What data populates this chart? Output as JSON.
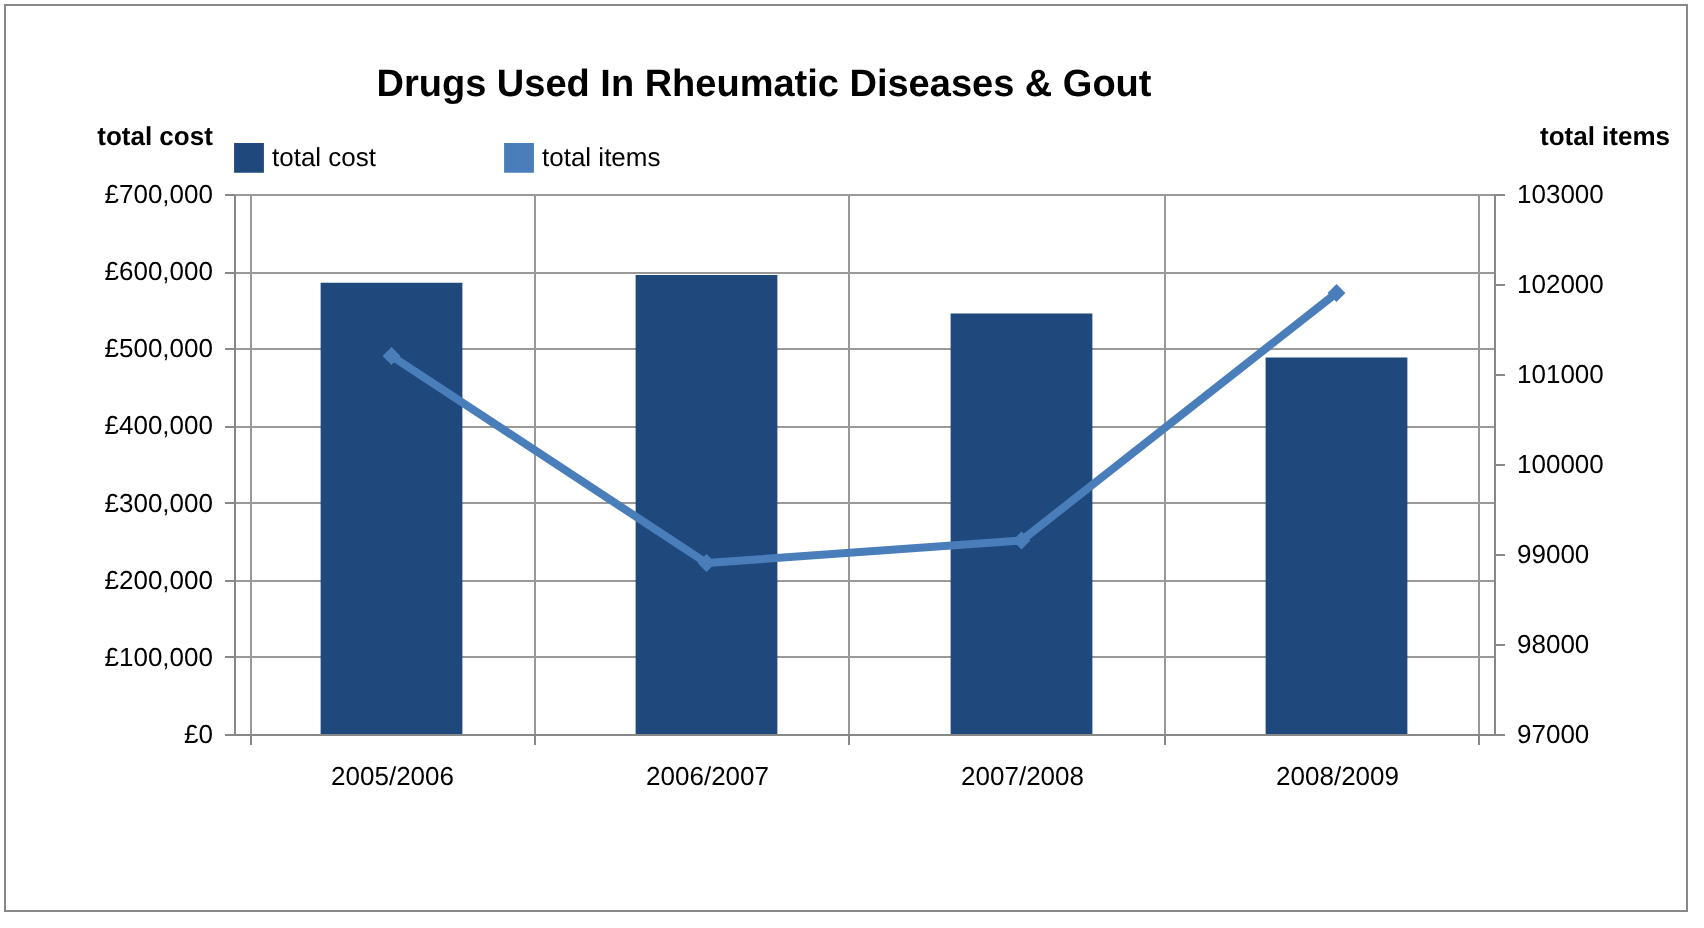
{
  "chart_data": {
    "type": "bar",
    "title": "Drugs Used In Rheumatic Diseases & Gout",
    "ylabel": "total cost",
    "y2label": "total items",
    "categories": [
      "2005/2006",
      "2006/2007",
      "2007/2008",
      "2008/2009"
    ],
    "series": [
      {
        "name": "total cost",
        "color": "#1f497d",
        "values": [
          585000,
          595000,
          545000,
          488000
        ]
      },
      {
        "name": "total items",
        "type": "line",
        "axis": "y2",
        "color": "#4a7ebb",
        "marker": "diamond",
        "values": [
          101200,
          98900,
          99150,
          101900
        ]
      }
    ],
    "ylim": [
      0,
      700000
    ],
    "yticks": [
      {
        "value": 0,
        "label": "£0"
      },
      {
        "value": 100000,
        "label": "£100,000"
      },
      {
        "value": 200000,
        "label": "£200,000"
      },
      {
        "value": 300000,
        "label": "£300,000"
      },
      {
        "value": 400000,
        "label": "£400,000"
      },
      {
        "value": 500000,
        "label": "£500,000"
      },
      {
        "value": 600000,
        "label": "£600,000"
      },
      {
        "value": 700000,
        "label": "£700,000"
      }
    ],
    "y2lim": [
      97000,
      103000
    ],
    "y2ticks": [
      97000,
      98000,
      99000,
      100000,
      101000,
      102000,
      103000
    ],
    "grid": true,
    "legend": "top"
  }
}
